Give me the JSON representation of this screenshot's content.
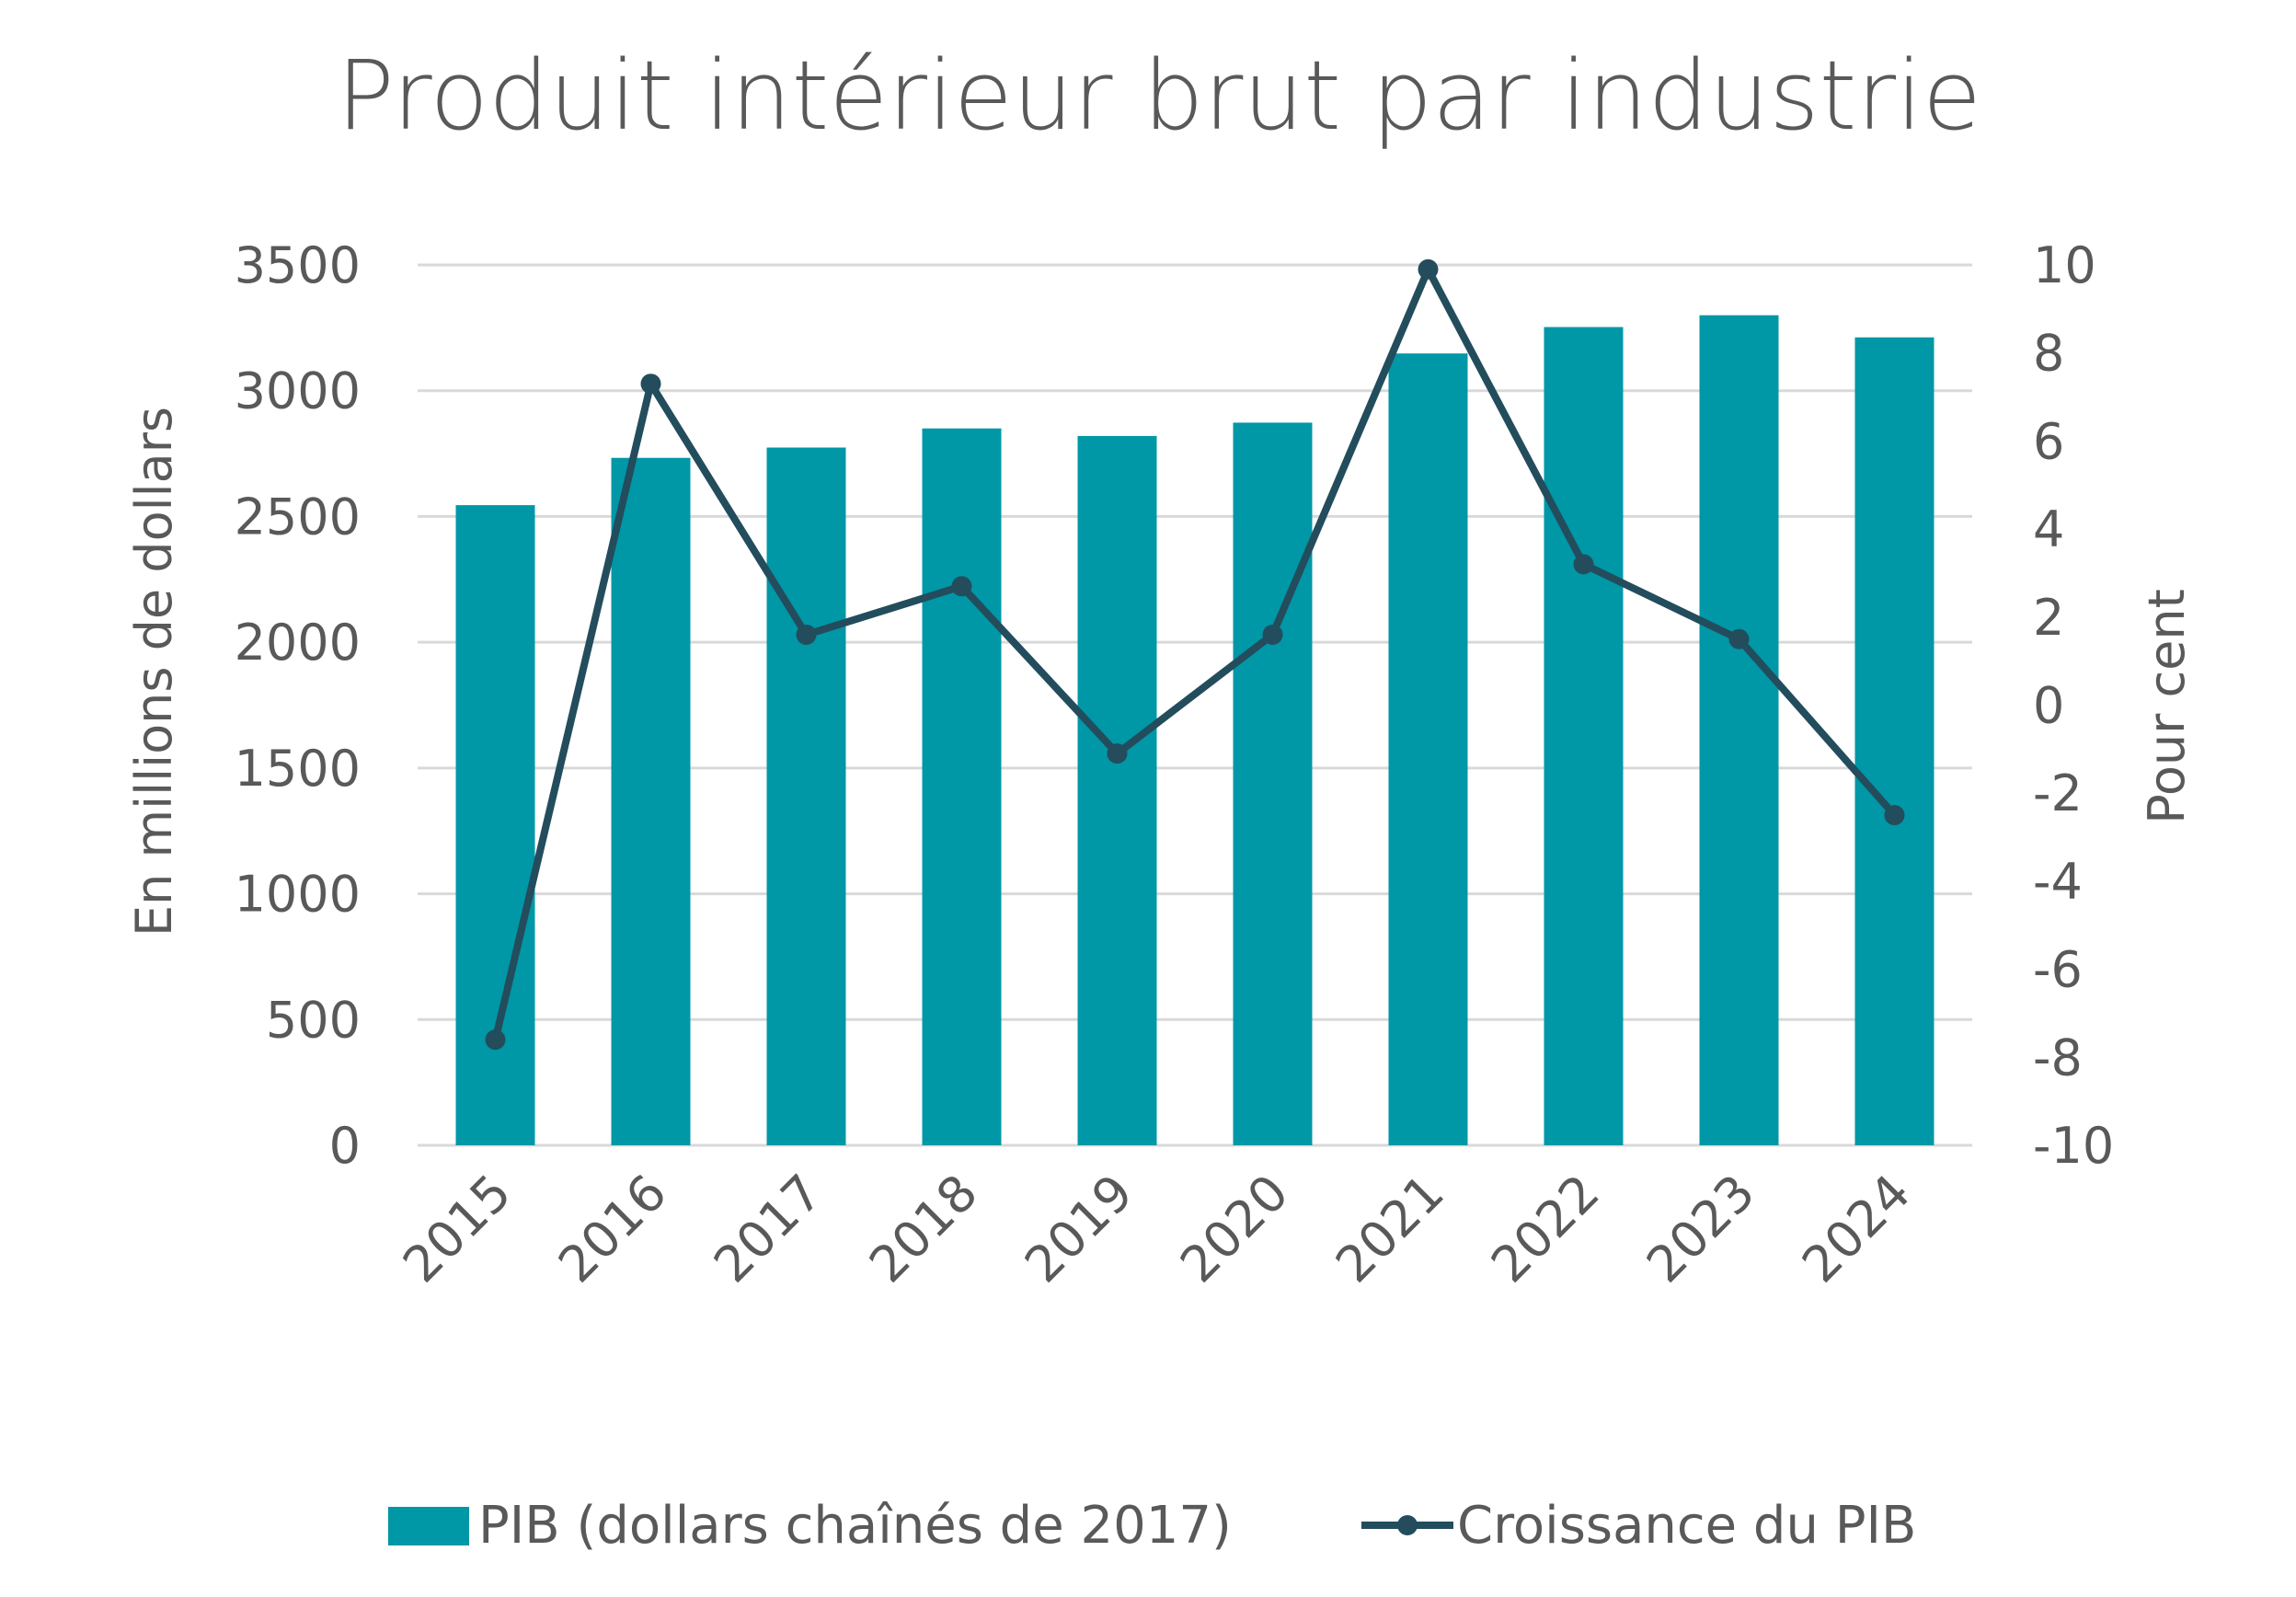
{
  "chart_data": {
    "type": "bar+line",
    "title": "Produit intérieur brut par industrie",
    "categories": [
      "2015",
      "2016",
      "2017",
      "2018",
      "2019",
      "2020",
      "2021",
      "2022",
      "2023",
      "2024"
    ],
    "series": [
      {
        "name": "PIB (dollars chaînés de 2017)",
        "type": "bar",
        "axis": "left",
        "values": [
          2545,
          2733,
          2774,
          2850,
          2820,
          2873,
          3148,
          3253,
          3300,
          3212
        ],
        "color": "#0097A7"
      },
      {
        "name": "Croissance du PIB",
        "type": "line",
        "axis": "right",
        "values": [
          -7.6,
          7.3,
          1.6,
          2.7,
          -1.1,
          1.6,
          9.9,
          3.2,
          1.5,
          -2.5
        ],
        "color": "#234D5C"
      }
    ],
    "ylabel": "En millions de dollars",
    "ylabel_right": "Pour cent",
    "ylim": [
      0,
      3500
    ],
    "ylim_right": [
      -10,
      10
    ],
    "yticks": [
      "0",
      "500",
      "1000",
      "1500",
      "2000",
      "2500",
      "3000",
      "3500"
    ],
    "yticks_right": [
      "-10",
      "-8",
      "-6",
      "-4",
      "-2",
      "0",
      "2",
      "4",
      "6",
      "8",
      "10"
    ],
    "grid": true,
    "legend": "bottom"
  }
}
